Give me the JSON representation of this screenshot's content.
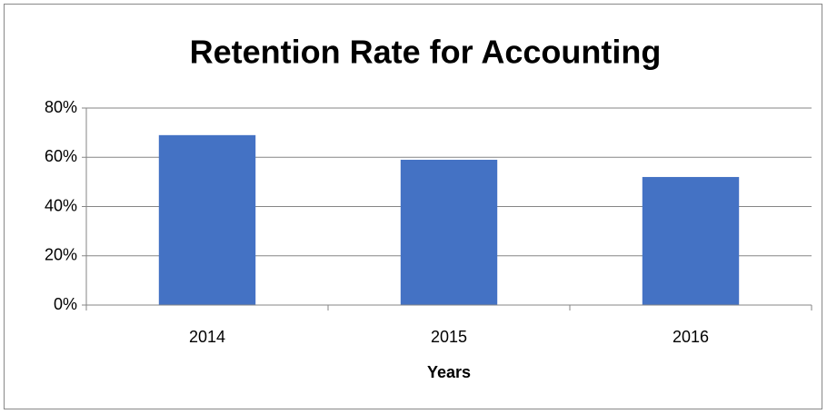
{
  "chart_data": {
    "type": "bar",
    "title": "Retention Rate for Accounting",
    "x_label": "Years",
    "categories": [
      "2014",
      "2015",
      "2016"
    ],
    "values": [
      69,
      59,
      52
    ],
    "color": "#4472c4",
    "ylim": [
      0,
      80
    ],
    "yticks": [
      {
        "value": 0,
        "label": "0%"
      },
      {
        "value": 20,
        "label": "20%"
      },
      {
        "value": 40,
        "label": "40%"
      },
      {
        "value": 60,
        "label": "60%"
      },
      {
        "value": 80,
        "label": "80%"
      }
    ],
    "grid": true
  }
}
